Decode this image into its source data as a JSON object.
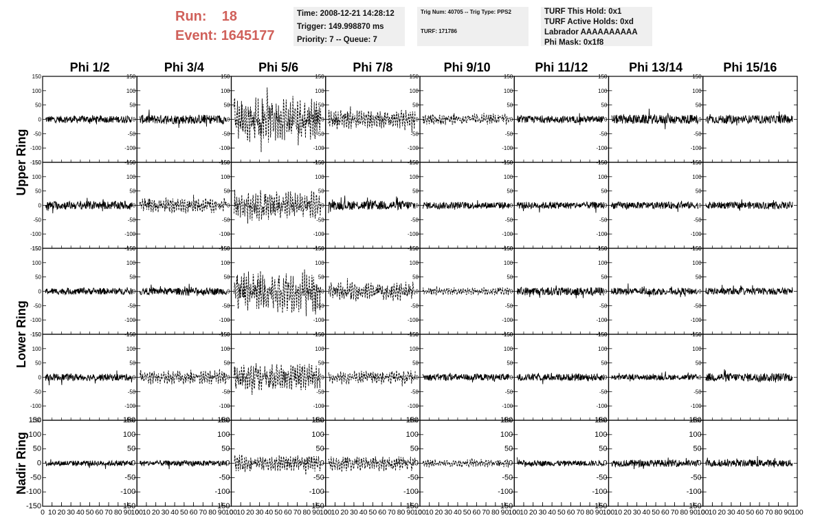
{
  "header": {
    "run_label": "Run:",
    "run_value": "18",
    "event_label": "Event:",
    "event_value": "1645177"
  },
  "info_boxes": {
    "time": "Time: 2008-12-21 14:28:12",
    "trigger": "Trigger: 149.998870 ms",
    "priority": "Priority: 7 -- Queue: 7",
    "trig_num": "Trig Num: 40705 -- Trig Type: PPS2",
    "turf": "TURF: 171786",
    "turf_this_hold": "TURF This Hold: 0x1",
    "turf_active_holds": "TURF Active Holds: 0xd",
    "labrador": "Labrador AAAAAAAAAA",
    "phi_mask": "Phi Mask: 0x1f8"
  },
  "colors": {
    "header_text": "#d0605a",
    "info_bg": "#efefef",
    "trace": "#000000"
  },
  "chart_data": {
    "type": "line",
    "title": "",
    "columns": [
      "Phi 1/2",
      "Phi 3/4",
      "Phi 5/6",
      "Phi 7/8",
      "Phi 9/10",
      "Phi 11/12",
      "Phi 13/14",
      "Phi 15/16"
    ],
    "ring_labels": [
      "Upper Ring",
      "Lower Ring",
      "Nadir Ring"
    ],
    "rows": 5,
    "xlim": [
      0,
      100
    ],
    "ylim": [
      -150,
      150
    ],
    "x_ticks": [
      0,
      10,
      20,
      30,
      40,
      50,
      60,
      70,
      80,
      90,
      100
    ],
    "x_tick_labels": [
      "0",
      "10",
      "20",
      "30",
      "40",
      "50",
      "60",
      "70",
      "80",
      "90",
      "100"
    ],
    "y_ticks": [
      -150,
      -100,
      -50,
      0,
      50,
      100,
      150
    ],
    "y_tick_labels": [
      "-150",
      "-100",
      "-50",
      "0",
      "50",
      "100",
      "150"
    ],
    "trace_amplitude": [
      [
        15,
        20,
        60,
        25,
        15,
        15,
        20,
        18
      ],
      [
        18,
        20,
        40,
        20,
        15,
        15,
        15,
        15
      ],
      [
        14,
        15,
        55,
        25,
        10,
        18,
        15,
        15
      ],
      [
        15,
        18,
        35,
        18,
        15,
        15,
        12,
        18
      ],
      [
        12,
        12,
        22,
        20,
        10,
        12,
        15,
        15
      ]
    ],
    "dashed_traces": [
      [
        false,
        false,
        true,
        true,
        true,
        false,
        false,
        false
      ],
      [
        false,
        true,
        true,
        false,
        false,
        false,
        false,
        false
      ],
      [
        false,
        false,
        true,
        true,
        true,
        false,
        false,
        false
      ],
      [
        false,
        true,
        true,
        true,
        false,
        false,
        false,
        false
      ],
      [
        false,
        false,
        true,
        true,
        true,
        false,
        false,
        false
      ]
    ]
  }
}
